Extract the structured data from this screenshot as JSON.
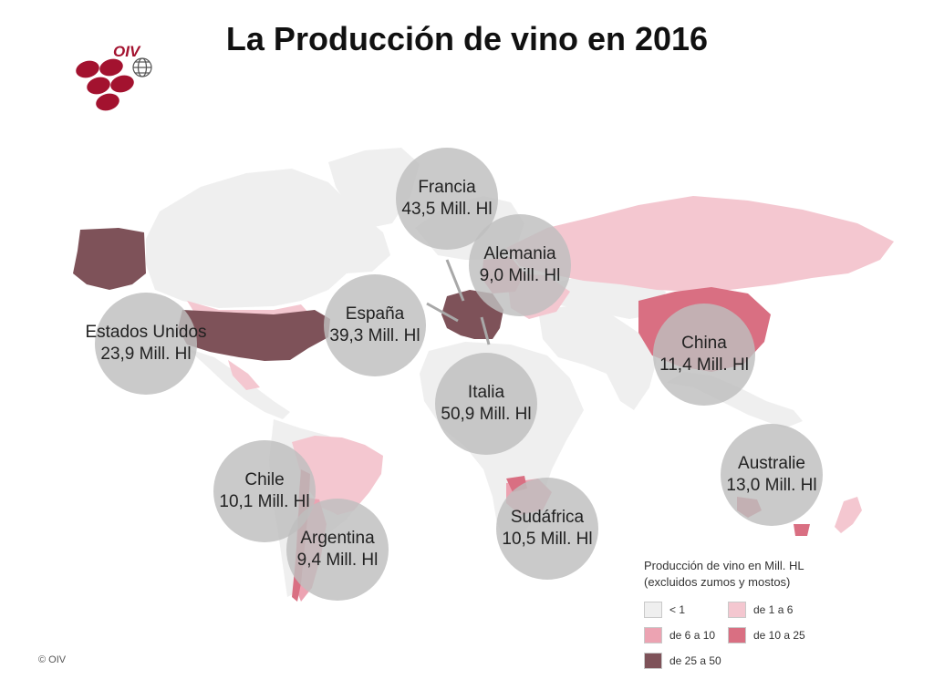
{
  "title": "La Producción de vino en 2016",
  "logo": {
    "text": "OIV",
    "color": "#a3122f"
  },
  "copyright": "© OIV",
  "colors": {
    "ocean": "#ffffff",
    "class_lt1": "#efefef",
    "class_1_6": "#f4c7d0",
    "class_6_10": "#eca3b2",
    "class_10_25": "#d96f82",
    "class_25_50": "#7e5259",
    "bubble": "#bebebe"
  },
  "countries": [
    {
      "name": "Francia",
      "value": "43,5 Mill. Hl"
    },
    {
      "name": "Alemania",
      "value": "9,0 Mill. Hl"
    },
    {
      "name": "España",
      "value": "39,3 Mill. Hl"
    },
    {
      "name": "Estados Unidos",
      "value": "23,9 Mill. Hl"
    },
    {
      "name": "China",
      "value": "11,4 Mill. Hl"
    },
    {
      "name": "Italia",
      "value": "50,9 Mill. Hl"
    },
    {
      "name": "Chile",
      "value": "10,1 Mill. Hl"
    },
    {
      "name": "Argentina",
      "value": "9,4 Mill. Hl"
    },
    {
      "name": "Sudáfrica",
      "value": "10,5 Mill. Hl"
    },
    {
      "name": "Australie",
      "value": "13,0 Mill. Hl"
    }
  ],
  "legend": {
    "title_line1": "Producción de vino en Mill. HL",
    "title_line2": "(excluidos zumos y mostos)",
    "items": [
      {
        "label": "< 1",
        "color": "#efefef"
      },
      {
        "label": "de 1 a 6",
        "color": "#f4c7d0"
      },
      {
        "label": "de 6 a 10",
        "color": "#eca3b2"
      },
      {
        "label": "de 10 a 25",
        "color": "#d96f82"
      },
      {
        "label": "de 25 a 50",
        "color": "#7e5259"
      }
    ]
  }
}
